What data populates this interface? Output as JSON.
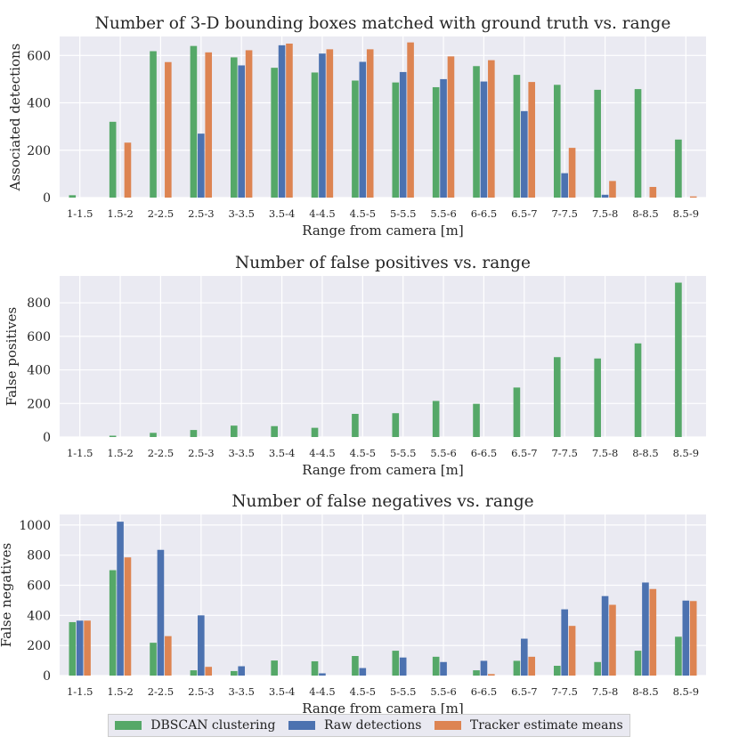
{
  "chart_data": [
    {
      "type": "bar",
      "title": "Number of 3-D bounding boxes matched with ground truth vs. range",
      "xlabel": "Range from camera [m]",
      "ylabel": "Associated detections",
      "ylim": [
        0,
        680
      ],
      "yticks": [
        0,
        200,
        400,
        600
      ],
      "categories": [
        "1-1.5",
        "1.5-2",
        "2-2.5",
        "2.5-3",
        "3-3.5",
        "3.5-4",
        "4-4.5",
        "4.5-5",
        "5-5.5",
        "5.5-6",
        "6-6.5",
        "6.5-7",
        "7-7.5",
        "7.5-8",
        "8-8.5",
        "8.5-9"
      ],
      "series": [
        {
          "name": "DBSCAN clustering",
          "values": [
            10,
            320,
            618,
            640,
            592,
            548,
            528,
            494,
            486,
            466,
            555,
            518,
            476,
            455,
            458,
            245
          ]
        },
        {
          "name": "Raw detections",
          "values": [
            0,
            0,
            0,
            270,
            558,
            643,
            608,
            573,
            530,
            500,
            490,
            365,
            103,
            12,
            0,
            0
          ]
        },
        {
          "name": "Tracker estimate means",
          "values": [
            0,
            232,
            572,
            613,
            622,
            650,
            626,
            626,
            655,
            596,
            580,
            488,
            210,
            70,
            45,
            5
          ]
        }
      ]
    },
    {
      "type": "bar",
      "title": "Number of false positives vs. range",
      "xlabel": "Range from camera [m]",
      "ylabel": "False positives",
      "ylim": [
        0,
        960
      ],
      "yticks": [
        0,
        200,
        400,
        600,
        800
      ],
      "categories": [
        "1-1.5",
        "1.5-2",
        "2-2.5",
        "2.5-3",
        "3-3.5",
        "3.5-4",
        "4-4.5",
        "4.5-5",
        "5-5.5",
        "5.5-6",
        "6-6.5",
        "6.5-7",
        "7-7.5",
        "7.5-8",
        "8-8.5",
        "8.5-9"
      ],
      "series": [
        {
          "name": "DBSCAN clustering",
          "values": [
            0,
            8,
            25,
            42,
            68,
            65,
            55,
            138,
            142,
            215,
            198,
            295,
            476,
            468,
            558,
            920
          ]
        },
        {
          "name": "Raw detections",
          "values": [
            0,
            0,
            0,
            0,
            0,
            0,
            0,
            0,
            0,
            0,
            0,
            0,
            0,
            0,
            0,
            0
          ]
        },
        {
          "name": "Tracker estimate means",
          "values": [
            0,
            0,
            0,
            0,
            0,
            0,
            0,
            0,
            0,
            0,
            0,
            0,
            0,
            0,
            0,
            0
          ]
        }
      ]
    },
    {
      "type": "bar",
      "title": "Number of false negatives vs. range",
      "xlabel": "Range from camera [m]",
      "ylabel": "False negatives",
      "ylim": [
        0,
        1070
      ],
      "yticks": [
        0,
        200,
        400,
        600,
        800,
        1000
      ],
      "categories": [
        "1-1.5",
        "1.5-2",
        "2-2.5",
        "2.5-3",
        "3-3.5",
        "3.5-4",
        "4-4.5",
        "4.5-5",
        "5-5.5",
        "5.5-6",
        "6-6.5",
        "6.5-7",
        "7-7.5",
        "7.5-8",
        "8-8.5",
        "8.5-9"
      ],
      "series": [
        {
          "name": "DBSCAN clustering",
          "values": [
            355,
            700,
            218,
            35,
            30,
            100,
            95,
            130,
            165,
            125,
            35,
            98,
            65,
            90,
            165,
            258
          ]
        },
        {
          "name": "Raw detections",
          "values": [
            365,
            1022,
            835,
            400,
            62,
            0,
            15,
            50,
            120,
            90,
            98,
            245,
            440,
            528,
            618,
            498
          ]
        },
        {
          "name": "Tracker estimate means",
          "values": [
            365,
            785,
            262,
            58,
            0,
            0,
            0,
            0,
            0,
            0,
            10,
            125,
            330,
            470,
            575,
            495
          ]
        }
      ]
    }
  ],
  "legend": {
    "items": [
      {
        "label": "DBSCAN clustering",
        "color": "#55a868"
      },
      {
        "label": "Raw detections",
        "color": "#4c72b0"
      },
      {
        "label": "Tracker estimate means",
        "color": "#dd8452"
      }
    ]
  },
  "colors": {
    "background": "#eaeaf2",
    "grid": "#ffffff"
  }
}
